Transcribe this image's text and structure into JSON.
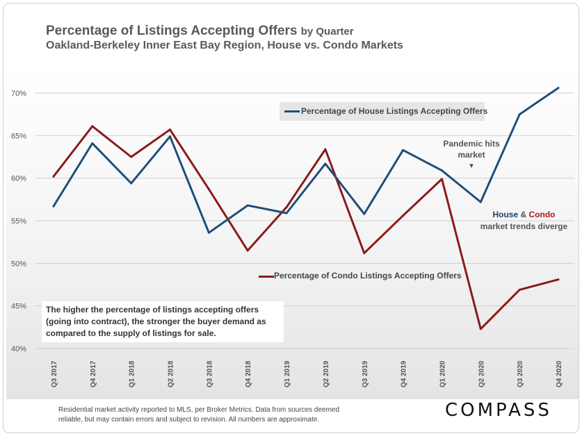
{
  "header": {
    "title": "Percentage of Listings Accepting Offers",
    "title_suffix": "by Quarter",
    "subtitle": "Oakland-Berkeley  Inner East Bay Region, House vs. Condo Markets"
  },
  "annotations": {
    "demand_note": "The higher the percentage of listings accepting offers (going into contract), the stronger the buyer demand as compared to the supply of listings for sale.",
    "pandemic_line1": "Pandemic hits",
    "pandemic_line2": "market",
    "pandemic_arrow": "▼",
    "diverge_house": "House",
    "diverge_amp": " & ",
    "diverge_condo": "Condo",
    "diverge_line2": "market trends diverge"
  },
  "footer": {
    "note_line1": "Residential market activity reported to MLS, per Broker Metrics. Data from sources deemed",
    "note_line2": "reliable, but may contain errors and subject to revision. All numbers are approximate.",
    "logo": "COMPASS"
  },
  "colors": {
    "house": "#1f4e79",
    "condo": "#8b1a1a",
    "gridline": "#d0d0d0",
    "axis_text": "#555555"
  },
  "chart_data": {
    "type": "line",
    "title": "Percentage of Listings Accepting Offers by Quarter",
    "categories": [
      "Q3 2017",
      "Q4 2017",
      "Q1 2018",
      "Q2 2018",
      "Q3 2018",
      "Q4 2018",
      "Q1 2019",
      "Q2 2019",
      "Q3 2019",
      "Q4 2019",
      "Q1 2020",
      "Q2 2020",
      "Q3 2020",
      "Q4 2020"
    ],
    "series": [
      {
        "name": "Percentage of House Listings Accepting Offers",
        "values": [
          56.7,
          64.1,
          59.4,
          64.9,
          53.6,
          56.8,
          55.9,
          61.7,
          55.8,
          63.3,
          60.9,
          57.2,
          67.5,
          70.6
        ]
      },
      {
        "name": "Percentage of Condo Listings Accepting Offers",
        "values": [
          60.2,
          66.1,
          62.5,
          65.7,
          58.7,
          51.5,
          56.6,
          63.4,
          51.2,
          55.6,
          59.9,
          42.3,
          46.9,
          48.1
        ]
      }
    ],
    "ylim": [
      40,
      72
    ],
    "yticks": [
      40,
      45,
      50,
      55,
      60,
      65,
      70
    ],
    "ytick_labels": [
      "40%",
      "45%",
      "50%",
      "55%",
      "60%",
      "65%",
      "70%"
    ],
    "grid": true
  }
}
